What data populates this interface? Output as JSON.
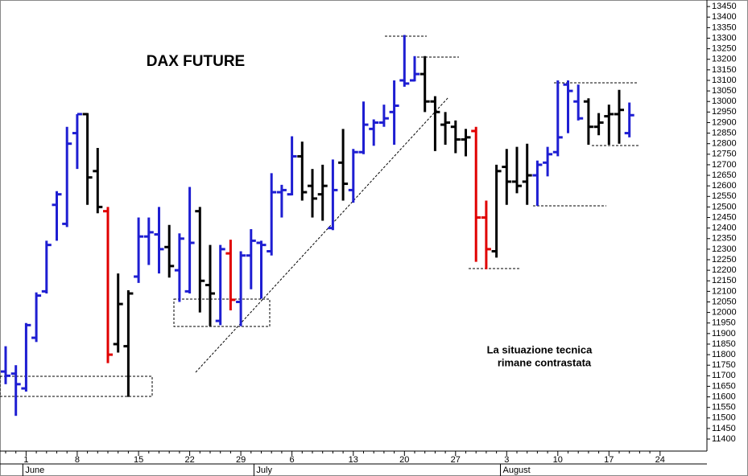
{
  "chart_data": {
    "type": "ohlc",
    "title": "DAX FUTURE",
    "annotation_lines": [
      "La situazione tecnica",
      "rimane contrastata"
    ],
    "categories": [
      null,
      null,
      "1",
      null,
      null,
      null,
      null,
      "8",
      null,
      null,
      null,
      null,
      null,
      "15",
      null,
      null,
      null,
      null,
      "22",
      null,
      null,
      null,
      null,
      "29",
      null,
      null,
      null,
      null,
      "6",
      null,
      null,
      null,
      null,
      null,
      "13",
      null,
      null,
      null,
      null,
      "20",
      null,
      null,
      null,
      null,
      "27",
      null,
      null,
      null,
      null,
      "3",
      null,
      null,
      null,
      null,
      "10",
      null,
      null,
      null,
      null,
      "17",
      null,
      null,
      null,
      null,
      "24"
    ],
    "months": [
      {
        "label": "June",
        "start": 2
      },
      {
        "label": "July",
        "start": 24.6
      },
      {
        "label": "August",
        "start": 48.7
      }
    ],
    "open": [
      11720,
      11710,
      11640,
      11880,
      12100,
      12510,
      12420,
      12850,
      12940,
      12670,
      12480,
      11850,
      11840,
      12170,
      12360,
      12370,
      12310,
      12200,
      12100,
      12480,
      12130,
      11960,
      12280,
      12050,
      12270,
      12330,
      12290,
      12570,
      12560,
      12740,
      12600,
      12560,
      12400,
      12710,
      12580,
      12760,
      12870,
      12900,
      12950,
      13100,
      13100,
      13130,
      13000,
      12890,
      12880,
      12820,
      12860,
      12450,
      12290,
      12690,
      12620,
      12620,
      12650,
      12710,
      12760,
      13080,
      13000,
      13000,
      12880,
      12930,
      12940,
      12850,
      null,
      null,
      null
    ],
    "high": [
      11840,
      11750,
      11950,
      12095,
      12340,
      12575,
      12880,
      12940,
      12945,
      12780,
      12500,
      12185,
      12105,
      12450,
      12450,
      12500,
      12415,
      12375,
      12595,
      12500,
      12320,
      12320,
      12345,
      12290,
      12395,
      12340,
      12660,
      12605,
      12835,
      12810,
      12680,
      12700,
      12725,
      12870,
      12775,
      13000,
      12915,
      12985,
      13100,
      13315,
      13215,
      13215,
      13025,
      12950,
      12910,
      12870,
      12880,
      12530,
      12700,
      12775,
      12785,
      12800,
      12720,
      12785,
      13100,
      13100,
      13080,
      13015,
      12945,
      12985,
      13055,
      12995,
      null,
      null,
      null
    ],
    "low": [
      11660,
      11510,
      11625,
      11860,
      12090,
      12340,
      12405,
      12680,
      12510,
      12470,
      11760,
      11810,
      11600,
      12140,
      12225,
      12185,
      12165,
      12050,
      12090,
      12000,
      11935,
      11940,
      12010,
      11935,
      12110,
      12065,
      12270,
      12450,
      12555,
      12530,
      12450,
      12435,
      12390,
      12530,
      12520,
      12750,
      12790,
      12880,
      12795,
      13070,
      13095,
      12950,
      12765,
      12795,
      12755,
      12740,
      12240,
      12205,
      12260,
      12510,
      12565,
      12510,
      12505,
      12645,
      12740,
      12850,
      12910,
      12795,
      12840,
      12795,
      12800,
      12830,
      null,
      null,
      null
    ],
    "close": [
      11700,
      11660,
      11940,
      12080,
      12320,
      12560,
      12800,
      12940,
      12640,
      12500,
      11800,
      12040,
      12090,
      12360,
      12380,
      12300,
      12220,
      12350,
      12330,
      12150,
      12090,
      12300,
      12060,
      12270,
      12340,
      12320,
      12570,
      12580,
      12740,
      12570,
      12540,
      12600,
      12580,
      12610,
      12760,
      12890,
      12900,
      12920,
      12980,
      13085,
      13130,
      13000,
      12950,
      12900,
      12820,
      12830,
      12450,
      12300,
      12670,
      12620,
      12600,
      12650,
      12700,
      12750,
      12830,
      13050,
      12920,
      12880,
      12900,
      12940,
      12960,
      12935,
      null,
      null,
      null
    ],
    "colors": [
      "#1e1ed2",
      "#1e1ed2",
      "#1e1ed2",
      "#1e1ed2",
      "#1e1ed2",
      "#1e1ed2",
      "#1e1ed2",
      "#1e1ed2",
      "#000000",
      "#000000",
      "#e00000",
      "#000000",
      "#000000",
      "#1e1ed2",
      "#1e1ed2",
      "#1e1ed2",
      "#000000",
      "#1e1ed2",
      "#1e1ed2",
      "#000000",
      "#000000",
      "#1e1ed2",
      "#e00000",
      "#1e1ed2",
      "#1e1ed2",
      "#1e1ed2",
      "#1e1ed2",
      "#1e1ed2",
      "#1e1ed2",
      "#000000",
      "#000000",
      "#000000",
      "#1e1ed2",
      "#000000",
      "#1e1ed2",
      "#1e1ed2",
      "#1e1ed2",
      "#1e1ed2",
      "#1e1ed2",
      "#1e1ed2",
      "#1e1ed2",
      "#000000",
      "#000000",
      "#000000",
      "#000000",
      "#000000",
      "#e00000",
      "#e00000",
      "#000000",
      "#000000",
      "#000000",
      "#000000",
      "#1e1ed2",
      "#1e1ed2",
      "#1e1ed2",
      "#1e1ed2",
      "#1e1ed2",
      "#000000",
      "#000000",
      "#000000",
      "#000000",
      "#1e1ed2",
      null,
      null,
      null
    ],
    "ylim": [
      11343,
      13481
    ],
    "yticks": [
      11400,
      11450,
      11500,
      11550,
      11600,
      11650,
      11700,
      11750,
      11800,
      11850,
      11900,
      11950,
      12000,
      12050,
      12100,
      12150,
      12200,
      12250,
      12300,
      12350,
      12400,
      12450,
      12500,
      12550,
      12600,
      12650,
      12700,
      12750,
      12800,
      12850,
      12900,
      12950,
      13000,
      13050,
      13100,
      13150,
      13200,
      13250,
      13300,
      13350,
      13400,
      13450
    ]
  }
}
